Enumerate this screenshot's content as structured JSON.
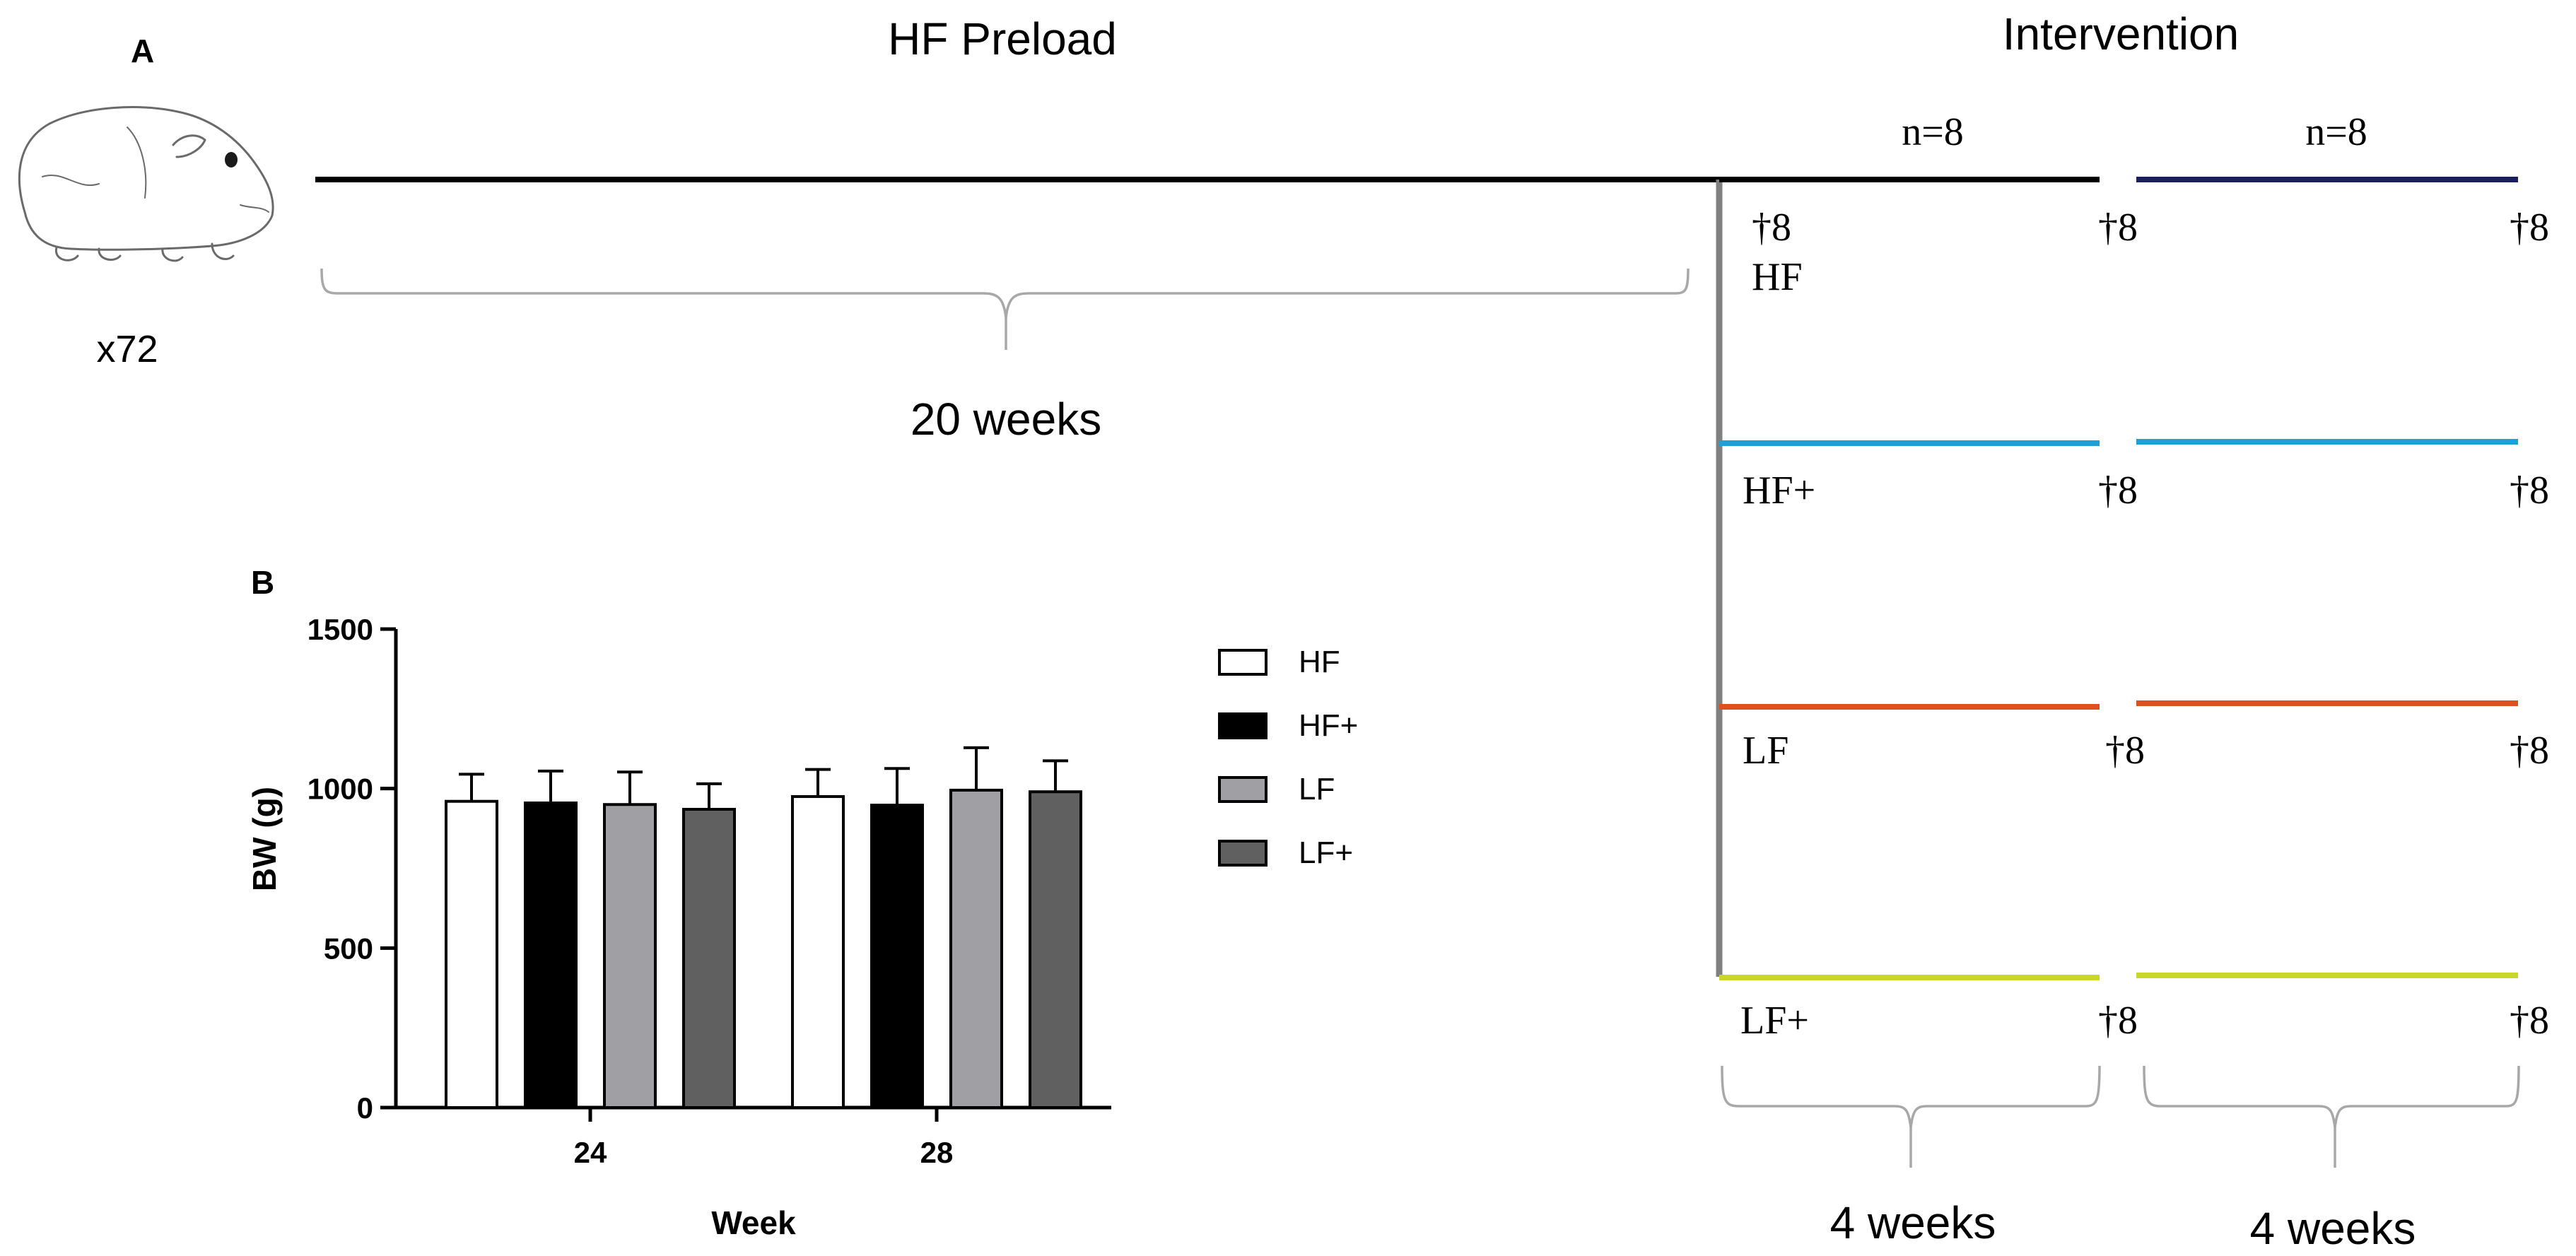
{
  "panel_a": {
    "label": "A",
    "animal_count": "x72",
    "preload_title": "HF Preload",
    "preload_duration": "20 weeks",
    "intervention_title": "Intervention",
    "n_first": "n=8",
    "n_second": "n=8",
    "groups": [
      {
        "name": "HF",
        "color": "#1b1f5e",
        "color_first": "#000000",
        "dagger_start": "†8",
        "dagger_mid": "†8",
        "dagger_end": "†8"
      },
      {
        "name": "HF+",
        "color": "#1ba1d8",
        "dagger_mid": "†8",
        "dagger_end": "†8"
      },
      {
        "name": "LF",
        "color": "#e0501e",
        "dagger_mid": "†8",
        "dagger_end": "†8"
      },
      {
        "name": "LF+",
        "color": "#c9d72a",
        "dagger_mid": "†8",
        "dagger_end": "†8"
      }
    ],
    "period_first": "4 weeks",
    "period_second": "4 weeks"
  },
  "chart_data": {
    "type": "bar",
    "panel_label": "B",
    "categories": [
      "24",
      "28"
    ],
    "xlabel": "Week",
    "ylabel": "BW (g)",
    "ylim": [
      0,
      1500
    ],
    "yticks": [
      "0",
      "500",
      "1000",
      "1500"
    ],
    "series": [
      {
        "name": "HF",
        "fill": "#ffffff",
        "values": [
          960,
          975
        ],
        "errors": [
          85,
          85
        ]
      },
      {
        "name": "HF+",
        "fill": "#000000",
        "values": [
          955,
          948
        ],
        "errors": [
          100,
          115
        ]
      },
      {
        "name": "LF",
        "fill": "#a0a0a4",
        "values": [
          950,
          995
        ],
        "errors": [
          102,
          133
        ]
      },
      {
        "name": "LF+",
        "fill": "#606060",
        "values": [
          935,
          990
        ],
        "errors": [
          80,
          97
        ]
      }
    ],
    "legend": "right"
  }
}
